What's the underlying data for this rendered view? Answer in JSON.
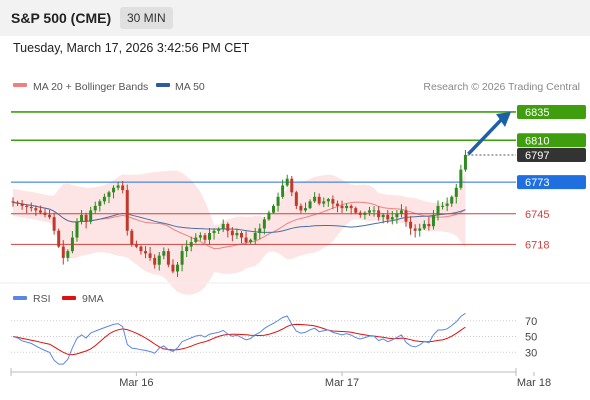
{
  "header": {
    "title": "S&P 500 (CME)",
    "interval": "30 MIN"
  },
  "datetime": "Tuesday, March 17, 2026 3:42:56 PM CET",
  "legend": {
    "ma20_label": "MA 20 + Bollinger Bands",
    "ma50_label": "MA 50",
    "credit": "Research © 2026 Trading Central"
  },
  "colors": {
    "resistance": "#3f9e0d",
    "support": "#d04040",
    "pivot": "#1f6fe0",
    "current": "#333333",
    "bull": "#2e8b1f",
    "bear": "#c0392b",
    "ma20": "#f08080",
    "ma50": "#4a6ea8",
    "bband": "#fde0e0",
    "rsi": "#5b86e5",
    "rsi_ma": "#e01010",
    "arrow": "#1f5fa8"
  },
  "chart_data": {
    "type": "candlestick",
    "price_ylim": [
      6690,
      6850
    ],
    "x_labels": [
      {
        "label": "Mar 16",
        "index": 27
      },
      {
        "label": "Mar 17",
        "index": 72
      },
      {
        "label": "Mar 18",
        "index": 114
      }
    ],
    "levels": [
      {
        "value": 6835,
        "label": "6835",
        "kind": "resistance"
      },
      {
        "value": 6810,
        "label": "6810",
        "kind": "resistance"
      },
      {
        "value": 6797,
        "label": "6797",
        "kind": "current"
      },
      {
        "value": 6773,
        "label": "6773",
        "kind": "pivot"
      },
      {
        "value": 6745,
        "label": "6745",
        "kind": "support"
      },
      {
        "value": 6718,
        "label": "6718",
        "kind": "support"
      }
    ],
    "close": [
      6755,
      6754,
      6752,
      6751,
      6750,
      6748,
      6746,
      6744,
      6742,
      6730,
      6716,
      6706,
      6712,
      6724,
      6738,
      6744,
      6738,
      6748,
      6752,
      6756,
      6760,
      6764,
      6768,
      6770,
      6766,
      6730,
      6718,
      6716,
      6712,
      6710,
      6706,
      6700,
      6708,
      6712,
      6700,
      6694,
      6700,
      6712,
      6716,
      6720,
      6724,
      6726,
      6722,
      6728,
      6730,
      6732,
      6736,
      6730,
      6726,
      6728,
      6724,
      6720,
      6722,
      6728,
      6732,
      6740,
      6746,
      6752,
      6760,
      6770,
      6776,
      6764,
      6752,
      6748,
      6750,
      6756,
      6760,
      6754,
      6756,
      6758,
      6754,
      6752,
      6750,
      6752,
      6750,
      6746,
      6744,
      6746,
      6748,
      6748,
      6742,
      6744,
      6740,
      6742,
      6745,
      6748,
      6738,
      6732,
      6730,
      6732,
      6736,
      6734,
      6744,
      6752,
      6752,
      6754,
      6760,
      6768,
      6784,
      6797
    ],
    "rsi": {
      "levels": [
        70,
        50,
        30
      ],
      "ylim": [
        10,
        90
      ],
      "legend_rsi": "RSI",
      "legend_ma": "9MA"
    }
  }
}
